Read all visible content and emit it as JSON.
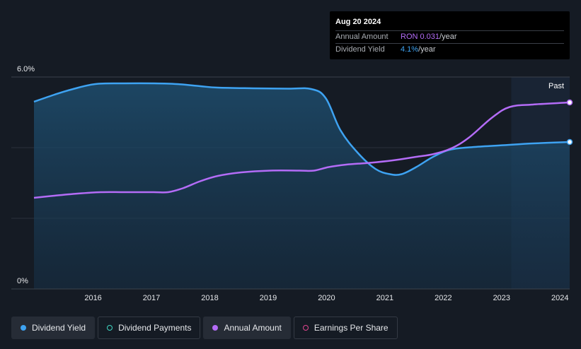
{
  "tooltip": {
    "date": "Aug 20 2024",
    "rows": [
      {
        "label": "Annual Amount",
        "value": "RON 0.031",
        "unit": "/year"
      },
      {
        "label": "Dividend Yield",
        "value": "4.1%",
        "unit": "/year"
      }
    ]
  },
  "legend": [
    {
      "label": "Dividend Yield",
      "color": "#3ea3f2",
      "filled": true
    },
    {
      "label": "Dividend Payments",
      "color": "#3fd6c2",
      "filled": false
    },
    {
      "label": "Annual Amount",
      "color": "#b46cf7",
      "filled": true
    },
    {
      "label": "Earnings Per Share",
      "color": "#e0468f",
      "filled": false
    }
  ],
  "chart_data": {
    "type": "line",
    "y_tick_labels": [
      "6.0%",
      "0%"
    ],
    "ylim": [
      0,
      6
    ],
    "xlim": [
      2015.45,
      2024.63
    ],
    "x_tick_labels": [
      "2016",
      "2017",
      "2018",
      "2019",
      "2020",
      "2021",
      "2022",
      "2023",
      "2024"
    ],
    "forecast_region_label": "Past",
    "forecast_region_start": 2023.63,
    "gridlines": [
      6,
      4,
      2
    ],
    "series": [
      {
        "name": "Dividend Yield",
        "color": "#3ea3f2",
        "area": true,
        "x": [
          2015.45,
          2015.8,
          2016.1,
          2016.5,
          2017.0,
          2017.5,
          2017.9,
          2018.3,
          2018.6,
          2019.2,
          2019.8,
          2020.2,
          2020.45,
          2020.7,
          2021.0,
          2021.3,
          2021.55,
          2021.75,
          2022.0,
          2022.3,
          2022.6,
          2023.0,
          2023.5,
          2024.0,
          2024.63
        ],
        "y": [
          5.3,
          5.5,
          5.65,
          5.8,
          5.82,
          5.82,
          5.8,
          5.74,
          5.7,
          5.68,
          5.67,
          5.66,
          5.4,
          4.5,
          3.85,
          3.4,
          3.25,
          3.25,
          3.45,
          3.75,
          3.95,
          4.02,
          4.07,
          4.12,
          4.16
        ]
      },
      {
        "name": "Annual Amount",
        "color": "#b46cf7",
        "area": false,
        "x": [
          2015.45,
          2015.8,
          2016.2,
          2016.6,
          2017.0,
          2017.5,
          2017.75,
          2018.0,
          2018.3,
          2018.6,
          2019.0,
          2019.5,
          2020.0,
          2020.25,
          2020.5,
          2020.8,
          2021.2,
          2021.6,
          2022.0,
          2022.3,
          2022.6,
          2022.9,
          2023.3,
          2023.6,
          2024.0,
          2024.63
        ],
        "y": [
          2.58,
          2.64,
          2.7,
          2.74,
          2.74,
          2.74,
          2.74,
          2.85,
          3.05,
          3.2,
          3.3,
          3.35,
          3.35,
          3.35,
          3.45,
          3.52,
          3.57,
          3.64,
          3.74,
          3.82,
          3.98,
          4.28,
          4.85,
          5.15,
          5.22,
          5.28
        ]
      }
    ]
  }
}
